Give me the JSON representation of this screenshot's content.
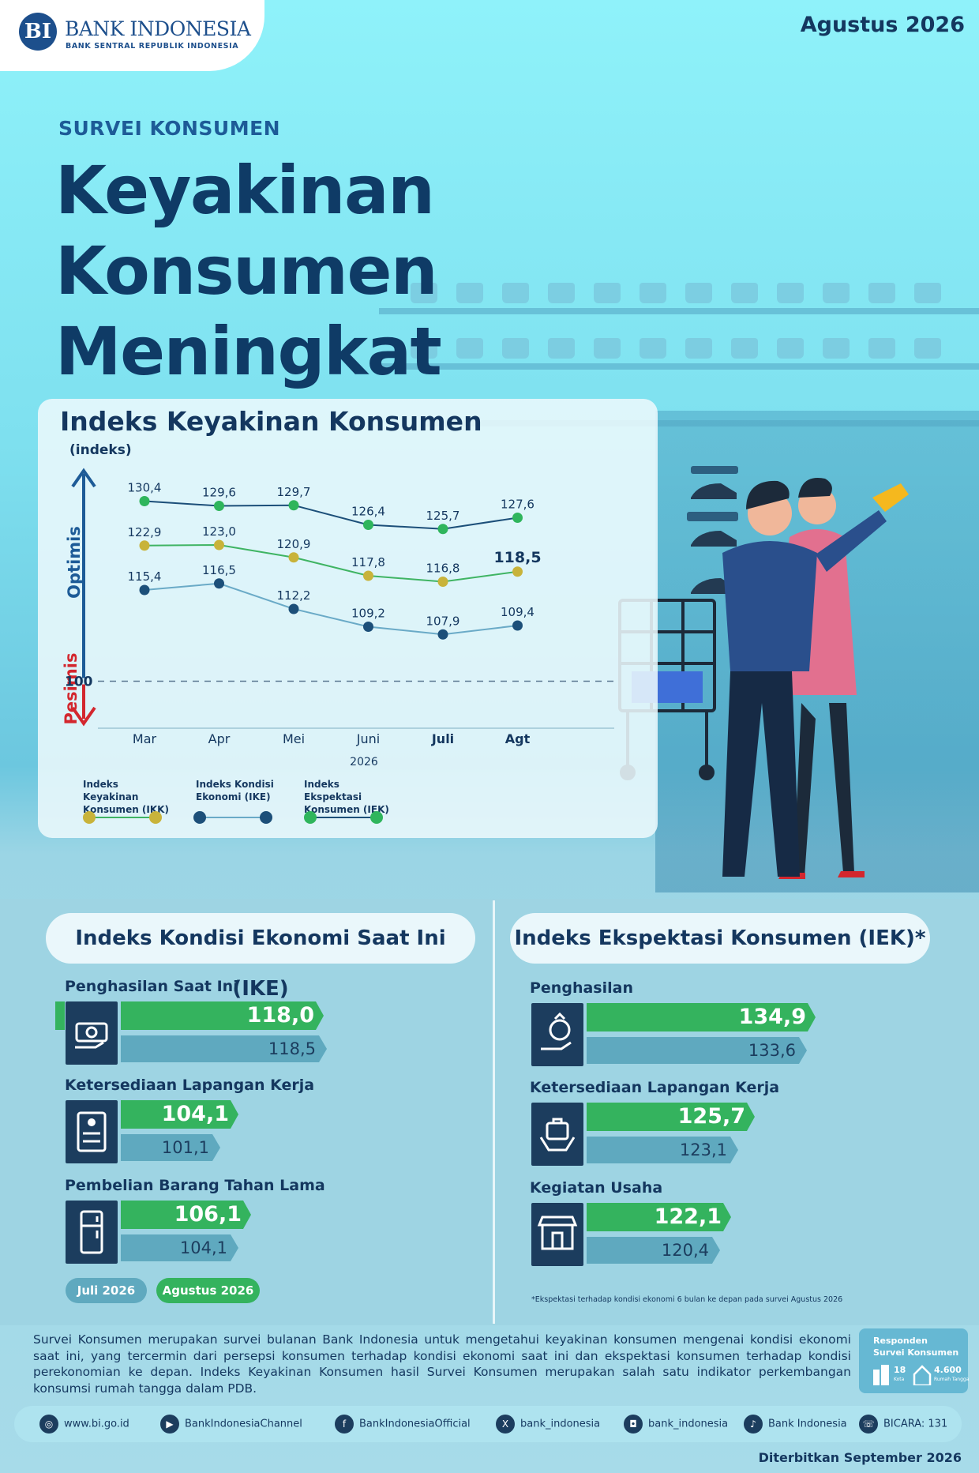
{
  "header": {
    "logo_mark": "BI",
    "logo_name": "BANK INDONESIA",
    "logo_sub": "BANK SENTRAL REPUBLIK INDONESIA",
    "period": "Agustus 2026"
  },
  "hero": {
    "kicker": "SURVEI KONSUMEN",
    "title_line1": "Keyakinan Konsumen",
    "title_line2": "Meningkat"
  },
  "chart_data": {
    "type": "line",
    "title": "Indeks Keyakinan Konsumen",
    "ylabel": "(indeks)",
    "zones": {
      "upper": "Optimis",
      "lower": "Pesimis"
    },
    "reference_line": {
      "value": 100,
      "label": "100"
    },
    "categories": [
      "Mar",
      "Apr",
      "Mei",
      "Juni",
      "Juli",
      "Agt"
    ],
    "xlabel": "2026",
    "ylim": [
      95,
      135
    ],
    "series": [
      {
        "name": "Indeks Keyakinan Konsumen (IKK)",
        "color": "#c8b33a",
        "line_color": "#3fb463",
        "values": [
          122.9,
          123.0,
          120.9,
          117.8,
          116.8,
          118.5
        ],
        "labels": [
          "122,9",
          "123,0",
          "120,9",
          "117,8",
          "116,8",
          "118,5"
        ]
      },
      {
        "name": "Indeks Kondisi Ekonomi (IKE)",
        "color": "#1c4f79",
        "line_color": "#6aaac7",
        "values": [
          115.4,
          116.5,
          112.2,
          109.2,
          107.9,
          109.4
        ],
        "labels": [
          "115,4",
          "116,5",
          "112,2",
          "109,2",
          "107,9",
          "109,4"
        ]
      },
      {
        "name": "Indeks Ekspektasi Konsumen (IEK)",
        "color": "#2fb55c",
        "line_color": "#1c4f79",
        "values": [
          130.4,
          129.6,
          129.7,
          126.4,
          125.7,
          127.6
        ],
        "labels": [
          "130,4",
          "129,6",
          "129,7",
          "126,4",
          "125,7",
          "127,6"
        ]
      }
    ],
    "legend": [
      {
        "line1": "Indeks Keyakinan",
        "line2": "Konsumen (IKK)",
        "dot": "#c8b33a",
        "line": "#3fb463"
      },
      {
        "line1": "Indeks Kondisi",
        "line2": "Ekonomi (IKE)",
        "dot": "#1c4f79",
        "line": "#6aaac7"
      },
      {
        "line1": "Indeks Ekspektasi",
        "line2": "Konsumen (IEK)",
        "dot": "#2fb55c",
        "line": "#1c4f79"
      }
    ]
  },
  "ike": {
    "title": "Indeks Kondisi Ekonomi Saat Ini (IKE)",
    "items": [
      {
        "label": "Penghasilan Saat Ini",
        "icon": "money-hand-icon",
        "agustus": "118,0",
        "juli": "118,5",
        "agustus_value": 118.0,
        "juli_value": 118.5
      },
      {
        "label": "Ketersediaan Lapangan Kerja",
        "icon": "job-clipboard-icon",
        "agustus": "104,1",
        "juli": "101,1",
        "agustus_value": 104.1,
        "juli_value": 101.1
      },
      {
        "label": "Pembelian Barang Tahan Lama",
        "icon": "refrigerator-icon",
        "agustus": "106,1",
        "juli": "104,1",
        "agustus_value": 106.1,
        "juli_value": 104.1
      }
    ],
    "legend_juli": "Juli 2026",
    "legend_agustus": "Agustus 2026"
  },
  "iek": {
    "title": "Indeks Ekspektasi Konsumen (IEK)*",
    "items": [
      {
        "label": "Penghasilan",
        "icon": "money-bag-hand-icon",
        "agustus": "134,9",
        "juli": "133,6",
        "agustus_value": 134.9,
        "juli_value": 133.6
      },
      {
        "label": "Ketersediaan Lapangan Kerja",
        "icon": "briefcase-hands-icon",
        "agustus": "125,7",
        "juli": "123,1",
        "agustus_value": 125.7,
        "juli_value": 123.1
      },
      {
        "label": "Kegiatan Usaha",
        "icon": "storefront-icon",
        "agustus": "122,1",
        "juli": "120,4",
        "agustus_value": 122.1,
        "juli_value": 120.4
      }
    ],
    "footnote": "*Ekspektasi terhadap kondisi ekonomi 6 bulan ke depan pada survei Agustus 2026"
  },
  "about": "Survei Konsumen merupakan survei bulanan Bank Indonesia untuk mengetahui keyakinan konsumen mengenai kondisi ekonomi saat ini, yang tercermin dari persepsi konsumen terhadap kondisi ekonomi saat ini dan ekspektasi konsumen terhadap kondisi perekonomian ke depan. Indeks Keyakinan Konsumen hasil Survei Konsumen merupakan salah satu indikator perkembangan konsumsi rumah tangga dalam PDB.",
  "respondents": {
    "title": "Responden Survei Konsumen",
    "cities": "18",
    "cities_label": "Kota",
    "households": "4.600",
    "households_label": "Rumah Tangga"
  },
  "social": [
    {
      "icon": "globe-icon",
      "glyph": "◎",
      "text": "www.bi.go.id"
    },
    {
      "icon": "play-icon",
      "glyph": "▶",
      "text": "BankIndonesiaChannel"
    },
    {
      "icon": "facebook-icon",
      "glyph": "f",
      "text": "BankIndonesiaOfficial"
    },
    {
      "icon": "x-icon",
      "glyph": "X",
      "text": "bank_indonesia"
    },
    {
      "icon": "instagram-icon",
      "glyph": "◘",
      "text": "bank_indonesia"
    },
    {
      "icon": "tiktok-icon",
      "glyph": "♪",
      "text": "Bank Indonesia"
    },
    {
      "icon": "bicara-icon",
      "glyph": "☏",
      "text": "BICARA: 131"
    }
  ],
  "published": "Diterbitkan September 2026",
  "colors": {
    "navy": "#14375f",
    "green": "#34b35e",
    "steel": "#5fa9bf",
    "red": "#d3262e",
    "blue_arrow": "#1d5b97"
  }
}
